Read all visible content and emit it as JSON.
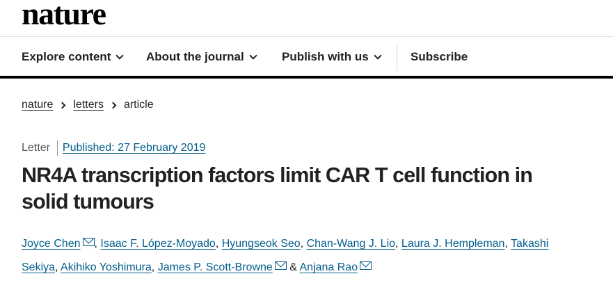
{
  "site": {
    "logo": "nature"
  },
  "nav": {
    "explore": "Explore content",
    "about": "About the journal",
    "publish": "Publish with us",
    "subscribe": "Subscribe"
  },
  "breadcrumb": {
    "items": [
      "nature",
      "letters",
      "article"
    ]
  },
  "article": {
    "type": "Letter",
    "published": "Published: 27 February 2019",
    "title_line1": "NR4A transcription factors limit CAR T cell function in",
    "title_line2": "solid tumours",
    "authors": [
      "Joyce Chen",
      "Isaac F. López-Moyado",
      "Hyungseok Seo",
      "Chan-Wang J. Lio",
      "Laura J. Hempleman",
      "Takashi Sekiya",
      "Akihiko Yoshimura",
      "James P. Scott-Browne",
      "Anjana Rao"
    ],
    "takashi_first": "Takashi",
    "takashi_last": "Sekiya",
    "conjunction": "&"
  },
  "colors": {
    "link": "#025e8d",
    "text": "#222222",
    "nav_rule": "#000000"
  }
}
